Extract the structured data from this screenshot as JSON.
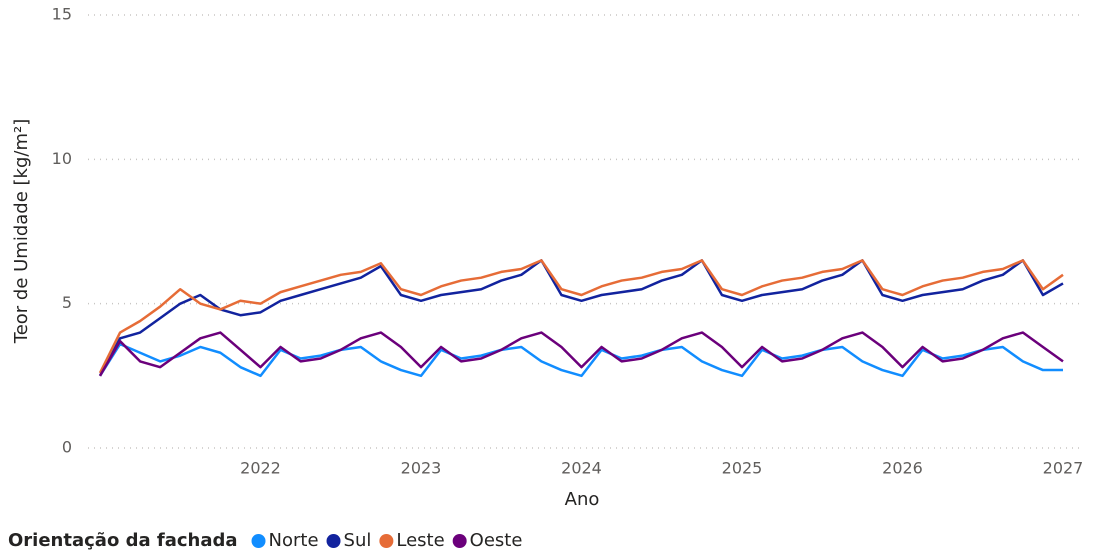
{
  "chart_data": {
    "type": "line",
    "y_label": "Teor de Umidade [kg/m²]",
    "x_label": "Ano",
    "legend_title": "Orientação da fachada",
    "legend": "bottom-left",
    "grid": true,
    "xlim": [
      2021,
      2027
    ],
    "xticks": [
      2022,
      2023,
      2024,
      2025,
      2026,
      2027
    ],
    "ylim": [
      0,
      15
    ],
    "yticks": [
      0,
      5,
      10,
      15
    ],
    "x": [
      2021,
      2021.125,
      2021.25,
      2021.375,
      2021.5,
      2021.625,
      2021.75,
      2021.875,
      2022,
      2022.125,
      2022.25,
      2022.375,
      2022.5,
      2022.625,
      2022.75,
      2022.875,
      2023,
      2023.125,
      2023.25,
      2023.375,
      2023.5,
      2023.625,
      2023.75,
      2023.875,
      2024,
      2024.125,
      2024.25,
      2024.375,
      2024.5,
      2024.625,
      2024.75,
      2024.875,
      2025,
      2025.125,
      2025.25,
      2025.375,
      2025.5,
      2025.625,
      2025.75,
      2025.875,
      2026,
      2026.125,
      2026.25,
      2026.375,
      2026.5,
      2026.625,
      2026.75,
      2026.875,
      2027
    ],
    "series": [
      {
        "name": "Norte",
        "color": "#118dff",
        "values": [
          2.5,
          3.6,
          3.3,
          3.0,
          3.2,
          3.5,
          3.3,
          2.8,
          2.5,
          3.4,
          3.1,
          3.2,
          3.4,
          3.5,
          3.0,
          2.7,
          2.5,
          3.4,
          3.1,
          3.2,
          3.4,
          3.5,
          3.0,
          2.7,
          2.5,
          3.4,
          3.1,
          3.2,
          3.4,
          3.5,
          3.0,
          2.7,
          2.5,
          3.4,
          3.1,
          3.2,
          3.4,
          3.5,
          3.0,
          2.7,
          2.5,
          3.4,
          3.1,
          3.2,
          3.4,
          3.5,
          3.0,
          2.7,
          2.7
        ]
      },
      {
        "name": "Sul",
        "color": "#12239e",
        "values": [
          2.5,
          3.8,
          4.0,
          4.5,
          5.0,
          5.3,
          4.8,
          4.6,
          4.7,
          5.1,
          5.3,
          5.5,
          5.7,
          5.9,
          6.3,
          5.3,
          5.1,
          5.3,
          5.4,
          5.5,
          5.8,
          6.0,
          6.5,
          5.3,
          5.1,
          5.3,
          5.4,
          5.5,
          5.8,
          6.0,
          6.5,
          5.3,
          5.1,
          5.3,
          5.4,
          5.5,
          5.8,
          6.0,
          6.5,
          5.3,
          5.1,
          5.3,
          5.4,
          5.5,
          5.8,
          6.0,
          6.5,
          5.3,
          5.7
        ]
      },
      {
        "name": "Leste",
        "color": "#e66c37",
        "values": [
          2.6,
          4.0,
          4.4,
          4.9,
          5.5,
          5.0,
          4.8,
          5.1,
          5.0,
          5.4,
          5.6,
          5.8,
          6.0,
          6.1,
          6.4,
          5.5,
          5.3,
          5.6,
          5.8,
          5.9,
          6.1,
          6.2,
          6.5,
          5.5,
          5.3,
          5.6,
          5.8,
          5.9,
          6.1,
          6.2,
          6.5,
          5.5,
          5.3,
          5.6,
          5.8,
          5.9,
          6.1,
          6.2,
          6.5,
          5.5,
          5.3,
          5.6,
          5.8,
          5.9,
          6.1,
          6.2,
          6.5,
          5.5,
          6.0
        ]
      },
      {
        "name": "Oeste",
        "color": "#6b007b",
        "values": [
          2.5,
          3.7,
          3.0,
          2.8,
          3.3,
          3.8,
          4.0,
          3.4,
          2.8,
          3.5,
          3.0,
          3.1,
          3.4,
          3.8,
          4.0,
          3.5,
          2.8,
          3.5,
          3.0,
          3.1,
          3.4,
          3.8,
          4.0,
          3.5,
          2.8,
          3.5,
          3.0,
          3.1,
          3.4,
          3.8,
          4.0,
          3.5,
          2.8,
          3.5,
          3.0,
          3.1,
          3.4,
          3.8,
          4.0,
          3.5,
          2.8,
          3.5,
          3.0,
          3.1,
          3.4,
          3.8,
          4.0,
          3.5,
          3.0
        ]
      }
    ]
  }
}
